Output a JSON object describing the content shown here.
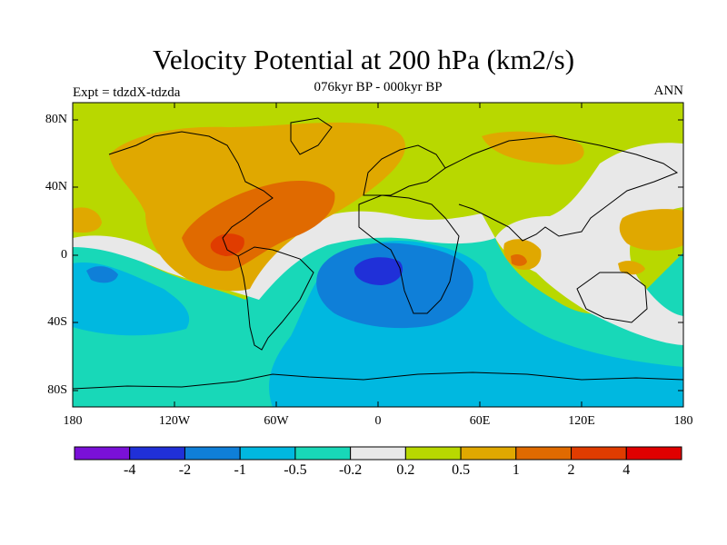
{
  "title": "Velocity Potential at 200 hPa (km2/s)",
  "subtitle": "076kyr BP - 000kyr BP",
  "left_label": "Expt = tdzdX-tdzda",
  "right_label": "ANN",
  "x_ticks": [
    "180",
    "120W",
    "60W",
    "0",
    "60E",
    "120E",
    "180"
  ],
  "y_ticks": [
    "80N",
    "40N",
    "0",
    "40S",
    "80S"
  ],
  "colorbar": {
    "colors": [
      "#7a10d8",
      "#2030d8",
      "#0f7fd8",
      "#00b8e0",
      "#18d8b8",
      "#e8e8e8",
      "#b8d800",
      "#e0a800",
      "#e06a00",
      "#e03c00",
      "#e00000"
    ],
    "labels": [
      "-4",
      "-2",
      "-1",
      "-0.5",
      "-0.2",
      "0.2",
      "0.5",
      "1",
      "2",
      "4"
    ]
  },
  "map": {
    "background_color": "#b8d800",
    "coastline_color": "#000000"
  }
}
